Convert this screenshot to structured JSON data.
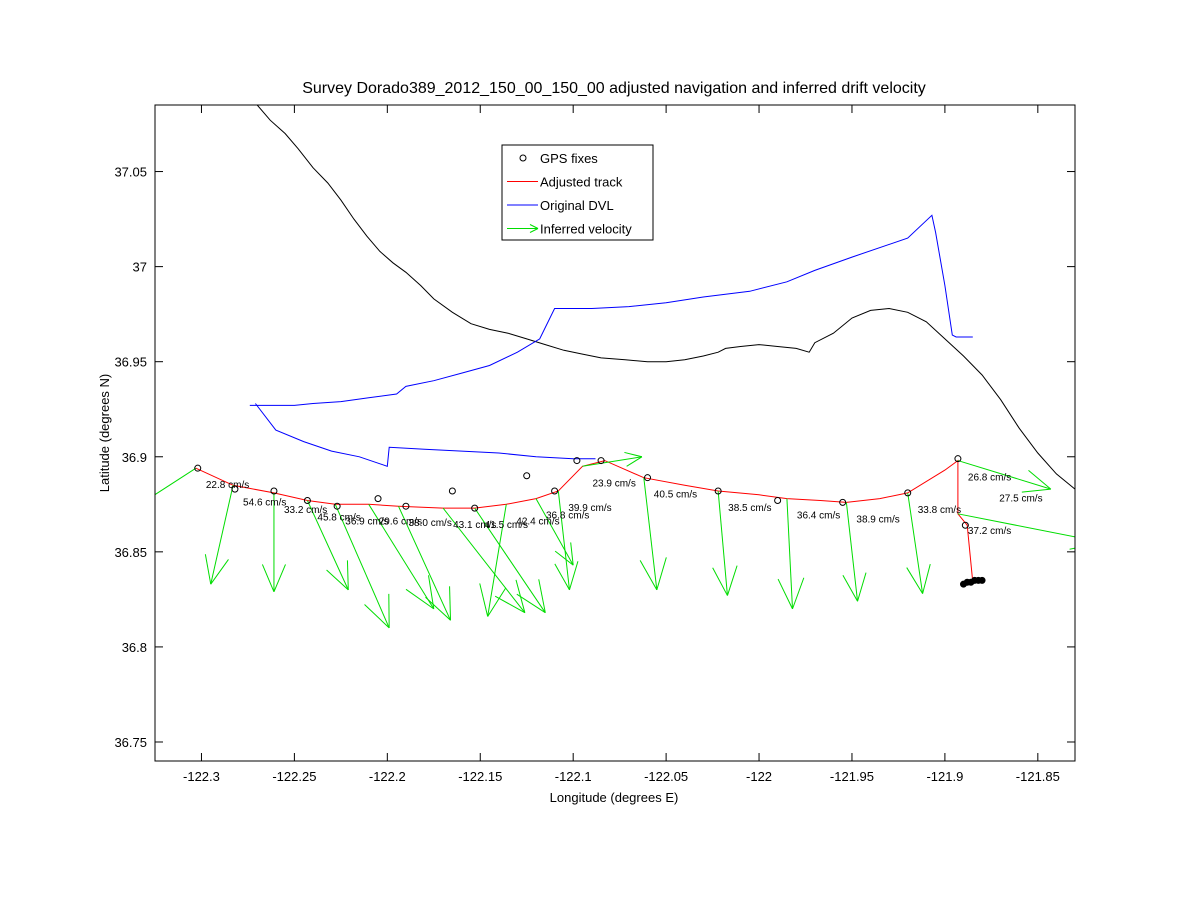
{
  "chart_data": {
    "type": "scatter",
    "title": "Survey Dorado389_2012_150_00_150_00 adjusted navigation and inferred drift velocity",
    "xlabel": "Longitude (degrees E)",
    "ylabel": "Latitude (degrees N)",
    "xlim": [
      -122.325,
      -121.83
    ],
    "ylim": [
      36.74,
      37.085
    ],
    "xticks": [
      -122.3,
      -122.25,
      -122.2,
      -122.15,
      -122.1,
      -122.05,
      -122,
      -121.95,
      -121.9,
      -121.85
    ],
    "xtick_labels": [
      "-122.3",
      "-122.25",
      "-122.2",
      "-122.15",
      "-122.1",
      "-122.05",
      "-122",
      "-121.95",
      "-121.9",
      "-121.85"
    ],
    "yticks": [
      36.75,
      36.8,
      36.85,
      36.9,
      36.95,
      37,
      37.05
    ],
    "ytick_labels": [
      "36.75",
      "36.8",
      "36.85",
      "36.9",
      "36.95",
      "37",
      "37.05"
    ],
    "legend": {
      "position": "top-center",
      "entries": [
        {
          "label": "GPS fixes",
          "color": "#000000",
          "marker": "circle"
        },
        {
          "label": "Adjusted track",
          "color": "#ff0000",
          "marker": "line"
        },
        {
          "label": "Original DVL",
          "color": "#0000ff",
          "marker": "line"
        },
        {
          "label": "Inferred velocity",
          "color": "#00dd00",
          "marker": "arrow"
        }
      ]
    },
    "series": [
      {
        "name": "Coastline",
        "color": "#000000",
        "points": [
          [
            -122.27,
            37.085
          ],
          [
            -122.263,
            37.077
          ],
          [
            -122.255,
            37.07
          ],
          [
            -122.248,
            37.062
          ],
          [
            -122.24,
            37.052
          ],
          [
            -122.232,
            37.044
          ],
          [
            -122.225,
            37.035
          ],
          [
            -122.218,
            37.025
          ],
          [
            -122.211,
            37.016
          ],
          [
            -122.204,
            37.008
          ],
          [
            -122.197,
            37.002
          ],
          [
            -122.19,
            36.997
          ],
          [
            -122.182,
            36.99
          ],
          [
            -122.175,
            36.983
          ],
          [
            -122.165,
            36.976
          ],
          [
            -122.155,
            36.97
          ],
          [
            -122.145,
            36.967
          ],
          [
            -122.135,
            36.965
          ],
          [
            -122.125,
            36.962
          ],
          [
            -122.115,
            36.959
          ],
          [
            -122.105,
            36.956
          ],
          [
            -122.095,
            36.954
          ],
          [
            -122.085,
            36.952
          ],
          [
            -122.072,
            36.951
          ],
          [
            -122.06,
            36.95
          ],
          [
            -122.05,
            36.95
          ],
          [
            -122.04,
            36.951
          ],
          [
            -122.03,
            36.953
          ],
          [
            -122.022,
            36.955
          ],
          [
            -122.018,
            36.957
          ],
          [
            -122.01,
            36.958
          ],
          [
            -122.0,
            36.959
          ],
          [
            -121.99,
            36.958
          ],
          [
            -121.98,
            36.957
          ],
          [
            -121.973,
            36.955
          ],
          [
            -121.97,
            36.96
          ],
          [
            -121.96,
            36.965
          ],
          [
            -121.95,
            36.973
          ],
          [
            -121.94,
            36.977
          ],
          [
            -121.93,
            36.978
          ],
          [
            -121.92,
            36.976
          ],
          [
            -121.91,
            36.971
          ],
          [
            -121.9,
            36.962
          ],
          [
            -121.89,
            36.953
          ],
          [
            -121.88,
            36.943
          ],
          [
            -121.87,
            36.93
          ],
          [
            -121.86,
            36.915
          ],
          [
            -121.85,
            36.902
          ],
          [
            -121.84,
            36.891
          ],
          [
            -121.83,
            36.883
          ]
        ]
      },
      {
        "name": "Original DVL",
        "color": "#0000ff",
        "points": [
          [
            -122.274,
            36.927
          ],
          [
            -122.26,
            36.927
          ],
          [
            -122.25,
            36.927
          ],
          [
            -122.24,
            36.928
          ],
          [
            -122.225,
            36.929
          ],
          [
            -122.21,
            36.931
          ],
          [
            -122.195,
            36.933
          ],
          [
            -122.19,
            36.937
          ],
          [
            -122.175,
            36.94
          ],
          [
            -122.16,
            36.944
          ],
          [
            -122.145,
            36.948
          ],
          [
            -122.13,
            36.955
          ],
          [
            -122.118,
            36.962
          ],
          [
            -122.11,
            36.978
          ],
          [
            -122.09,
            36.978
          ],
          [
            -122.07,
            36.979
          ],
          [
            -122.05,
            36.981
          ],
          [
            -122.03,
            36.984
          ],
          [
            -122.005,
            36.987
          ],
          [
            -121.985,
            36.992
          ],
          [
            -121.97,
            36.998
          ],
          [
            -121.95,
            37.005
          ],
          [
            -121.92,
            37.015
          ],
          [
            -121.907,
            37.027
          ],
          [
            -121.905,
            37.018
          ],
          [
            -121.9,
            36.99
          ],
          [
            -121.896,
            36.964
          ],
          [
            -121.894,
            36.963
          ],
          [
            -121.885,
            36.963
          ]
        ]
      },
      {
        "name": "Original DVL",
        "color": "#0000ff",
        "points": [
          [
            -122.271,
            36.928
          ],
          [
            -122.26,
            36.914
          ],
          [
            -122.245,
            36.908
          ],
          [
            -122.23,
            36.903
          ],
          [
            -122.215,
            36.9
          ],
          [
            -122.2,
            36.895
          ],
          [
            -122.199,
            36.905
          ],
          [
            -122.18,
            36.904
          ],
          [
            -122.16,
            36.903
          ],
          [
            -122.14,
            36.902
          ],
          [
            -122.12,
            36.9
          ],
          [
            -122.1,
            36.899
          ],
          [
            -122.088,
            36.899
          ]
        ]
      },
      {
        "name": "Adjusted track",
        "color": "#ff0000",
        "points": [
          [
            -122.303,
            36.894
          ],
          [
            -122.283,
            36.885
          ],
          [
            -122.261,
            36.881
          ],
          [
            -122.243,
            36.877
          ],
          [
            -122.228,
            36.875
          ],
          [
            -122.21,
            36.875
          ],
          [
            -122.194,
            36.874
          ],
          [
            -122.17,
            36.873
          ],
          [
            -122.153,
            36.873
          ],
          [
            -122.136,
            36.875
          ],
          [
            -122.12,
            36.878
          ],
          [
            -122.108,
            36.882
          ],
          [
            -122.095,
            36.895
          ],
          [
            -122.083,
            36.898
          ],
          [
            -122.062,
            36.889
          ],
          [
            -122.04,
            36.885
          ],
          [
            -122.022,
            36.882
          ],
          [
            -122.0,
            36.88
          ],
          [
            -121.985,
            36.878
          ],
          [
            -121.967,
            36.877
          ],
          [
            -121.953,
            36.876
          ],
          [
            -121.935,
            36.878
          ],
          [
            -121.92,
            36.881
          ],
          [
            -121.9,
            36.893
          ],
          [
            -121.893,
            36.898
          ],
          [
            -121.893,
            36.87
          ],
          [
            -121.888,
            36.864
          ],
          [
            -121.885,
            36.834
          ]
        ]
      }
    ],
    "gps_fixes": [
      [
        -122.302,
        36.894
      ],
      [
        -122.282,
        36.883
      ],
      [
        -122.261,
        36.882
      ],
      [
        -122.243,
        36.877
      ],
      [
        -122.227,
        36.874
      ],
      [
        -122.205,
        36.878
      ],
      [
        -122.19,
        36.874
      ],
      [
        -122.165,
        36.882
      ],
      [
        -122.153,
        36.873
      ],
      [
        -122.125,
        36.89
      ],
      [
        -122.11,
        36.882
      ],
      [
        -122.098,
        36.898
      ],
      [
        -122.085,
        36.898
      ],
      [
        -122.06,
        36.889
      ],
      [
        -122.022,
        36.882
      ],
      [
        -121.99,
        36.877
      ],
      [
        -121.955,
        36.876
      ],
      [
        -121.92,
        36.881
      ],
      [
        -121.893,
        36.899
      ],
      [
        -121.889,
        36.864
      ]
    ],
    "gps_cluster": [
      [
        -121.89,
        36.833
      ],
      [
        -121.888,
        36.834
      ],
      [
        -121.886,
        36.834
      ],
      [
        -121.884,
        36.835
      ],
      [
        -121.882,
        36.835
      ],
      [
        -121.88,
        36.835
      ]
    ],
    "velocities": [
      {
        "x": -122.303,
        "y": 36.894,
        "dx": -0.038,
        "dy": -0.024,
        "label": "22.8 cm/s"
      },
      {
        "x": -122.283,
        "y": 36.885,
        "dx": -0.012,
        "dy": -0.052,
        "label": "54.6 cm/s"
      },
      {
        "x": -122.261,
        "y": 36.881,
        "dx": 0.0,
        "dy": -0.052,
        "label": "33.2 cm/s"
      },
      {
        "x": -122.243,
        "y": 36.877,
        "dx": 0.022,
        "dy": -0.047,
        "label": "45.8 cm/s"
      },
      {
        "x": -122.228,
        "y": 36.875,
        "dx": 0.029,
        "dy": -0.065,
        "label": "36.9 cm/s"
      },
      {
        "x": -122.21,
        "y": 36.875,
        "dx": 0.035,
        "dy": -0.055,
        "label": "29.6 cm/s"
      },
      {
        "x": -122.194,
        "y": 36.874,
        "dx": 0.028,
        "dy": -0.06,
        "label": "38.0 cm/s"
      },
      {
        "x": -122.17,
        "y": 36.873,
        "dx": 0.044,
        "dy": -0.055,
        "label": "43.1 cm/s"
      },
      {
        "x": -122.153,
        "y": 36.873,
        "dx": 0.038,
        "dy": -0.055,
        "label": "41.5 cm/s"
      },
      {
        "x": -122.136,
        "y": 36.875,
        "dx": -0.01,
        "dy": -0.059,
        "label": "42.4 cm/s"
      },
      {
        "x": -122.12,
        "y": 36.878,
        "dx": 0.02,
        "dy": -0.035,
        "label": "36.8 cm/s"
      },
      {
        "x": -122.108,
        "y": 36.882,
        "dx": 0.006,
        "dy": -0.052,
        "label": "39.9 cm/s"
      },
      {
        "x": -122.095,
        "y": 36.895,
        "dx": 0.032,
        "dy": 0.005,
        "label": "23.9 cm/s"
      },
      {
        "x": -122.062,
        "y": 36.889,
        "dx": 0.007,
        "dy": -0.059,
        "label": "40.5 cm/s"
      },
      {
        "x": -122.022,
        "y": 36.882,
        "dx": 0.005,
        "dy": -0.055,
        "label": "38.5 cm/s"
      },
      {
        "x": -121.985,
        "y": 36.878,
        "dx": 0.003,
        "dy": -0.058,
        "label": "36.4 cm/s"
      },
      {
        "x": -121.953,
        "y": 36.876,
        "dx": 0.006,
        "dy": -0.052,
        "label": "38.9 cm/s"
      },
      {
        "x": -121.92,
        "y": 36.881,
        "dx": 0.008,
        "dy": -0.053,
        "label": "33.8 cm/s"
      },
      {
        "x": -121.893,
        "y": 36.898,
        "dx": 0.05,
        "dy": -0.015,
        "label": "26.8 cm/s"
      },
      {
        "x": -121.893,
        "y": 36.87,
        "dx": 0.078,
        "dy": -0.015,
        "label": "37.2 cm/s"
      }
    ],
    "extra_velocity_labels": [
      {
        "x": -121.86,
        "y": 36.878,
        "label": "27.5 cm/s"
      }
    ]
  }
}
